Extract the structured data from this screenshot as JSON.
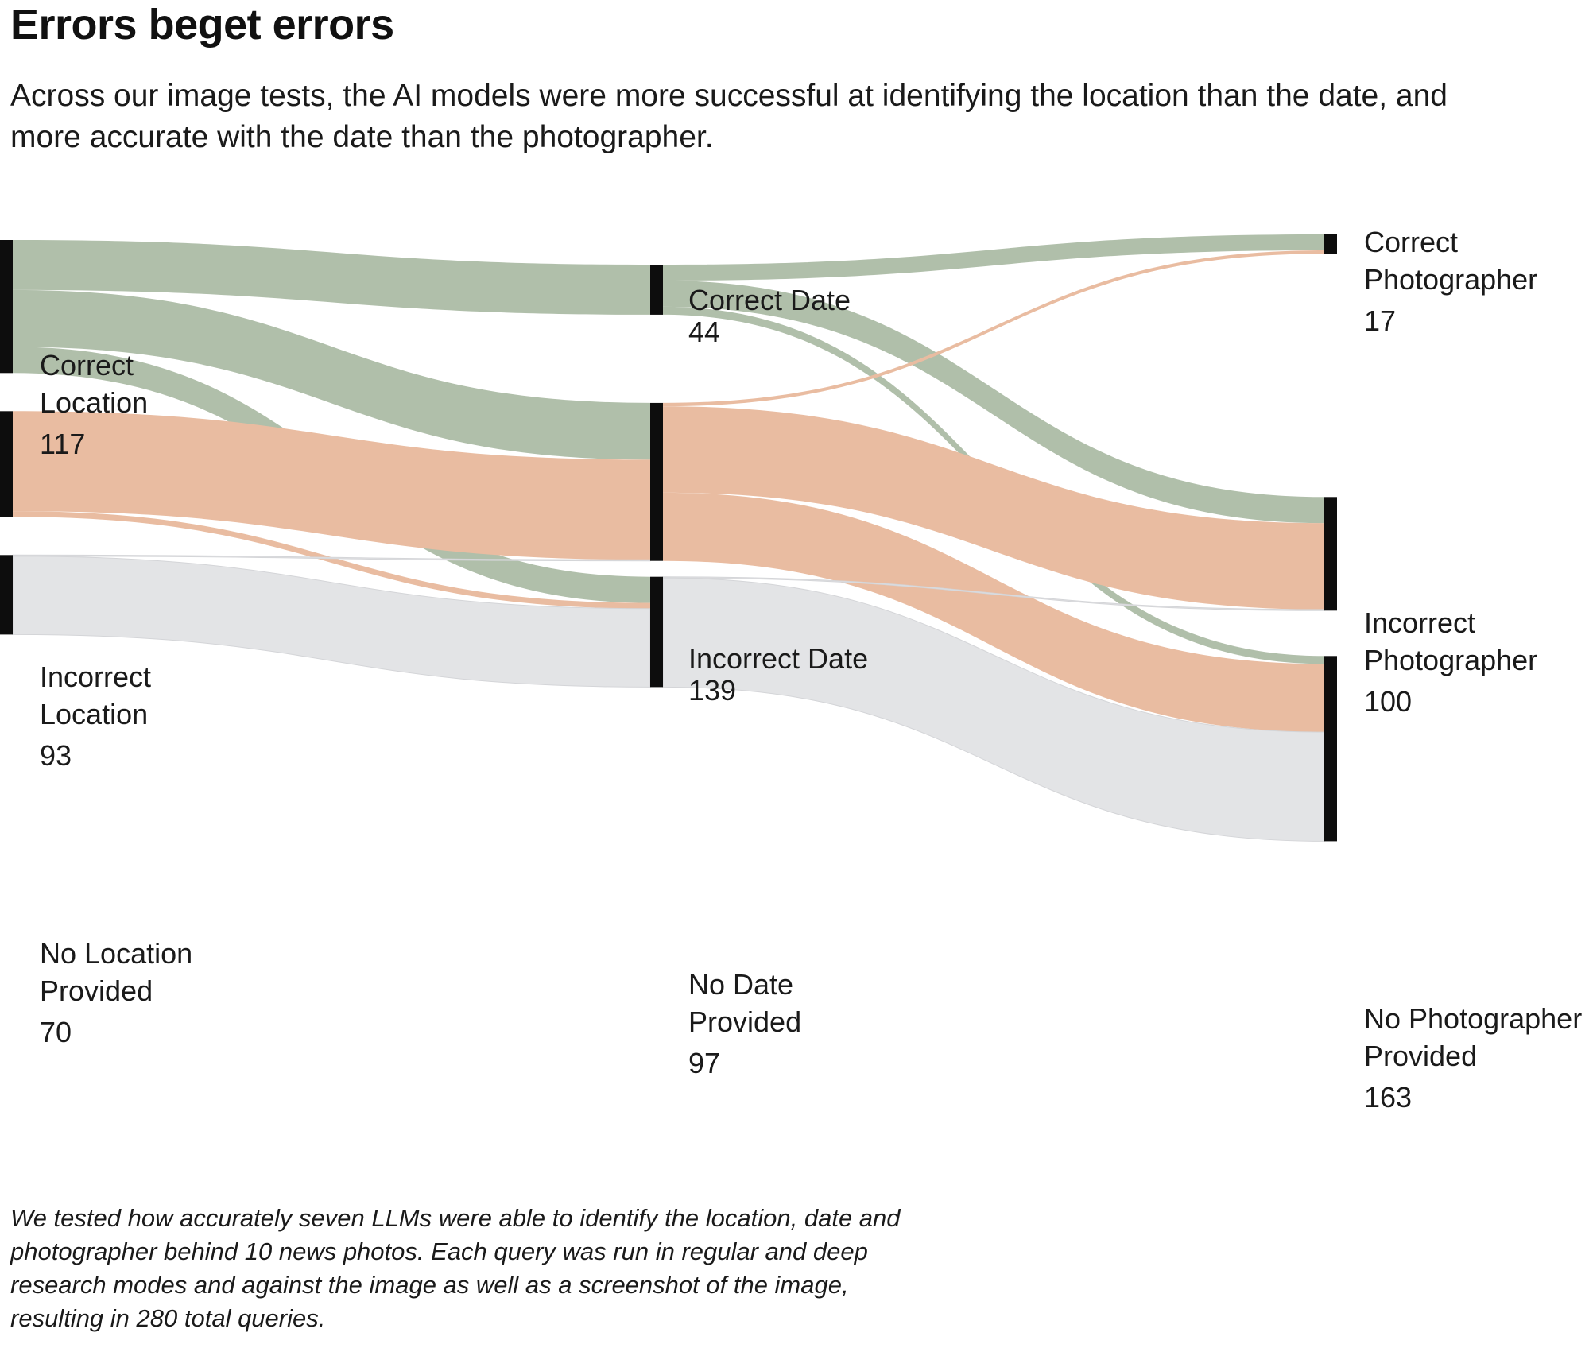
{
  "title": "Errors beget errors",
  "subtitle": "Across our image tests, the AI models were more successful at identifying the location than the date, and more accurate with the date than the photographer.",
  "footnote": "We tested how accurately seven LLMs were able to identify the location, date and photographer behind 10 news photos. Each query was run in regular and deep research modes and against the image as well as a screenshot of the image, resulting in 280 total queries.",
  "colors": {
    "correct": "#b0bfaa",
    "incorrect": "#e9bca1",
    "none": "#e3e4e6",
    "node": "#0d0d0d"
  },
  "chart_data": {
    "type": "sankey",
    "title": "Errors beget errors",
    "total_queries": 280,
    "stages": [
      "Location",
      "Date",
      "Photographer"
    ],
    "nodes": [
      {
        "id": "loc_correct",
        "stage": 0,
        "label": "Correct Location",
        "value_label": "117",
        "value": 117,
        "category": "correct"
      },
      {
        "id": "loc_incorrect",
        "stage": 0,
        "label": "Incorrect Location",
        "value_label": "93",
        "value": 93,
        "category": "incorrect"
      },
      {
        "id": "loc_none",
        "stage": 0,
        "label": "No Location Provided",
        "value_label": "70",
        "value": 70,
        "category": "none"
      },
      {
        "id": "date_correct",
        "stage": 1,
        "label": "Correct Date",
        "value_label": "44",
        "value": 44,
        "category": "correct"
      },
      {
        "id": "date_incorrect",
        "stage": 1,
        "label": "Incorrect Date",
        "value_label": "139",
        "value": 139,
        "category": "incorrect"
      },
      {
        "id": "date_none",
        "stage": 1,
        "label": "No Date Provided",
        "value_label": "97",
        "value": 97,
        "category": "none"
      },
      {
        "id": "ph_correct",
        "stage": 2,
        "label": "Correct Photographer",
        "value_label": "17",
        "value": 17,
        "category": "correct"
      },
      {
        "id": "ph_incorrect",
        "stage": 2,
        "label": "Incorrect Photographer",
        "value_label": "100",
        "value": 100,
        "category": "incorrect"
      },
      {
        "id": "ph_none",
        "stage": 2,
        "label": "No Photographer Provided",
        "value_label": "163",
        "value": 163,
        "category": "none"
      }
    ],
    "links": [
      {
        "source": "loc_correct",
        "target": "date_correct",
        "value": 44
      },
      {
        "source": "loc_correct",
        "target": "date_incorrect",
        "value": 50
      },
      {
        "source": "loc_correct",
        "target": "date_none",
        "value": 23
      },
      {
        "source": "loc_incorrect",
        "target": "date_incorrect",
        "value": 88
      },
      {
        "source": "loc_incorrect",
        "target": "date_none",
        "value": 5
      },
      {
        "source": "loc_none",
        "target": "date_incorrect",
        "value": 1
      },
      {
        "source": "loc_none",
        "target": "date_none",
        "value": 69
      },
      {
        "source": "date_correct",
        "target": "ph_correct",
        "value": 14
      },
      {
        "source": "date_correct",
        "target": "ph_incorrect",
        "value": 23
      },
      {
        "source": "date_correct",
        "target": "ph_none",
        "value": 7
      },
      {
        "source": "date_incorrect",
        "target": "ph_correct",
        "value": 3
      },
      {
        "source": "date_incorrect",
        "target": "ph_incorrect",
        "value": 76
      },
      {
        "source": "date_incorrect",
        "target": "ph_none",
        "value": 60
      },
      {
        "source": "date_none",
        "target": "ph_incorrect",
        "value": 1
      },
      {
        "source": "date_none",
        "target": "ph_none",
        "value": 96
      }
    ]
  }
}
